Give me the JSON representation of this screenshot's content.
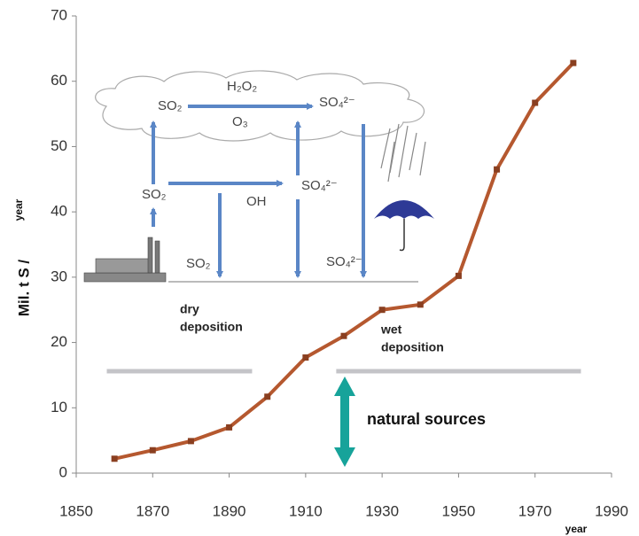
{
  "chart_data": {
    "type": "line",
    "y_label": "Mil. t S /",
    "y_label_sub": "year",
    "x_label": "year",
    "x": [
      1860,
      1870,
      1880,
      1890,
      1900,
      1910,
      1920,
      1930,
      1940,
      1950,
      1960,
      1970,
      1980
    ],
    "series": [
      {
        "color": "#b5582f",
        "values": [
          2.2,
          3.5,
          4.9,
          7.0,
          11.7,
          17.7,
          21.0,
          25.0,
          25.8,
          30.2,
          46.5,
          56.7,
          62.8
        ]
      }
    ],
    "xlim": [
      1850,
      1990
    ],
    "ylim": [
      0,
      70
    ],
    "xticks": [
      1850,
      1870,
      1890,
      1910,
      1930,
      1950,
      1970,
      1990
    ],
    "yticks": [
      0,
      10,
      20,
      30,
      40,
      50,
      60,
      70
    ],
    "grid": false,
    "natural_sources": {
      "value": 15.6,
      "spans": [
        [
          1858,
          1896
        ],
        [
          1918,
          1982
        ]
      ],
      "color": "#c4c4c8"
    },
    "annotations": [
      "SO₂",
      "H₂O₂",
      "SO₄²⁻",
      "O₃",
      "SO₂",
      "OH",
      "SO₄²⁻",
      "SO₂",
      "SO₄²⁻",
      "dry",
      "deposition",
      "wet",
      "deposition",
      "natural sources"
    ]
  }
}
